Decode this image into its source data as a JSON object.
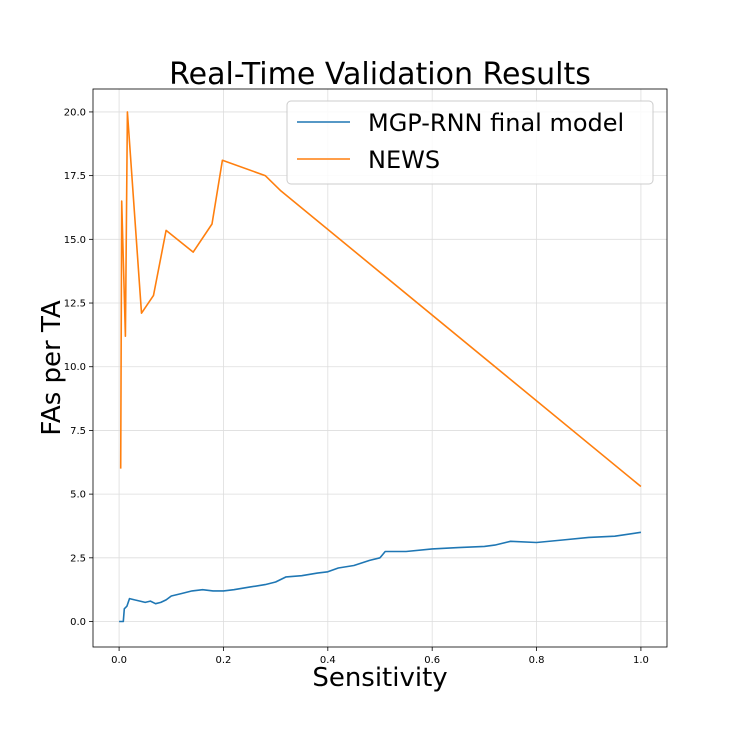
{
  "chart_data": {
    "type": "line",
    "title": "Real-Time Validation Results",
    "xlabel": "Sensitivity",
    "ylabel": "FAs per TA",
    "xlim": [
      -0.05,
      1.05
    ],
    "ylim": [
      -1.0,
      20.9
    ],
    "xticks": [
      0.0,
      0.2,
      0.4,
      0.6,
      0.8,
      1.0
    ],
    "xtick_labels": [
      "0.0",
      "0.2",
      "0.4",
      "0.6",
      "0.8",
      "1.0"
    ],
    "yticks": [
      0.0,
      2.5,
      5.0,
      7.5,
      10.0,
      12.5,
      15.0,
      17.5,
      20.0
    ],
    "ytick_labels": [
      "0.0",
      "2.5",
      "5.0",
      "7.5",
      "10.0",
      "12.5",
      "15.0",
      "17.5",
      "20.0"
    ],
    "grid": true,
    "legend_position": "top-right",
    "series": [
      {
        "name": "MGP-RNN final model",
        "color": "#1f77b4",
        "x": [
          0.0,
          0.008,
          0.01,
          0.015,
          0.02,
          0.03,
          0.04,
          0.05,
          0.06,
          0.07,
          0.08,
          0.09,
          0.1,
          0.12,
          0.14,
          0.16,
          0.18,
          0.2,
          0.22,
          0.25,
          0.28,
          0.3,
          0.32,
          0.35,
          0.38,
          0.4,
          0.42,
          0.45,
          0.48,
          0.5,
          0.51,
          0.55,
          0.6,
          0.65,
          0.7,
          0.72,
          0.75,
          0.8,
          0.85,
          0.9,
          0.95,
          1.0
        ],
        "y": [
          0.0,
          0.0,
          0.5,
          0.6,
          0.9,
          0.85,
          0.8,
          0.75,
          0.8,
          0.7,
          0.75,
          0.85,
          1.0,
          1.1,
          1.2,
          1.25,
          1.2,
          1.2,
          1.25,
          1.35,
          1.45,
          1.55,
          1.75,
          1.8,
          1.9,
          1.95,
          2.1,
          2.2,
          2.4,
          2.5,
          2.75,
          2.75,
          2.85,
          2.9,
          2.95,
          3.0,
          3.15,
          3.1,
          3.2,
          3.3,
          3.35,
          3.5
        ]
      },
      {
        "name": "NEWS",
        "color": "#ff7f0e",
        "x": [
          0.003,
          0.005,
          0.012,
          0.016,
          0.043,
          0.066,
          0.09,
          0.142,
          0.178,
          0.198,
          0.28,
          0.31,
          1.0
        ],
        "y": [
          6.0,
          16.5,
          11.2,
          20.0,
          12.1,
          12.8,
          15.35,
          14.5,
          15.6,
          18.1,
          17.5,
          16.9,
          5.3
        ]
      }
    ]
  }
}
